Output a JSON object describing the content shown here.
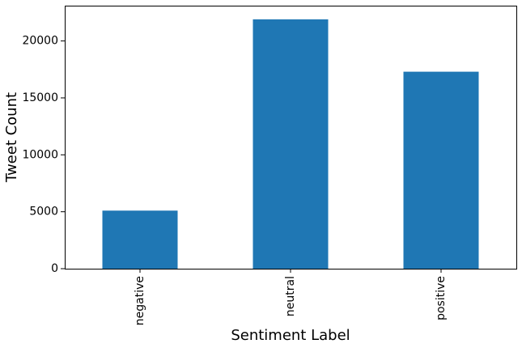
{
  "chart_data": {
    "type": "bar",
    "categories": [
      "negative",
      "neutral",
      "positive"
    ],
    "values": [
      5100,
      21900,
      17300
    ],
    "xlabel": "Sentiment Label",
    "ylabel": "Tweet Count",
    "ylim": [
      0,
      23100
    ],
    "yticks": [
      0,
      5000,
      10000,
      15000,
      20000
    ],
    "yticks_text": [
      "0",
      "5000",
      "10000",
      "15000",
      "20000"
    ],
    "bar_color": "#1f77b4",
    "grid": false,
    "legend": "none",
    "category_label_rotation": "vertical"
  }
}
